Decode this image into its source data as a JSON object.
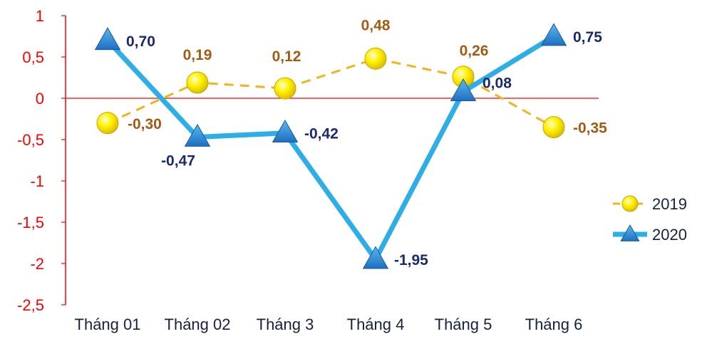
{
  "chart_data": {
    "type": "line",
    "categories": [
      "Tháng 01",
      "Tháng 02",
      "Tháng 3",
      "Tháng 4",
      "Tháng 5",
      "Tháng 6"
    ],
    "ylim": [
      -2.5,
      1
    ],
    "yticks": [
      "1",
      "0,5",
      "0",
      "-0,5",
      "-1",
      "-1,5",
      "-2",
      "-2,5"
    ],
    "ytick_values": [
      1,
      0.5,
      0,
      -0.5,
      -1,
      -1.5,
      -2,
      -2.5
    ],
    "grid": false,
    "legend_position": "right",
    "series": [
      {
        "name": "2019",
        "values": [
          -0.3,
          0.19,
          0.12,
          0.48,
          0.26,
          -0.35
        ],
        "labels": [
          "-0,30",
          "0,19",
          "0,12",
          "0,48",
          "0,26",
          "-0,35"
        ],
        "color": "#f5b21a",
        "label_color": "#a35a12",
        "marker": "circle",
        "line_style": "dashed"
      },
      {
        "name": "2020",
        "values": [
          0.7,
          -0.47,
          -0.42,
          -1.95,
          0.08,
          0.75
        ],
        "labels": [
          "0,70",
          "-0,47",
          "-0,42",
          "-1,95",
          "0,08",
          "0,75"
        ],
        "color": "#2eaee6",
        "label_color": "#1a2a6c",
        "marker": "triangle",
        "line_style": "solid"
      }
    ],
    "axis_color": "#ff0000",
    "tick_color": "#ff0000",
    "xtick_color": "#16213f"
  }
}
